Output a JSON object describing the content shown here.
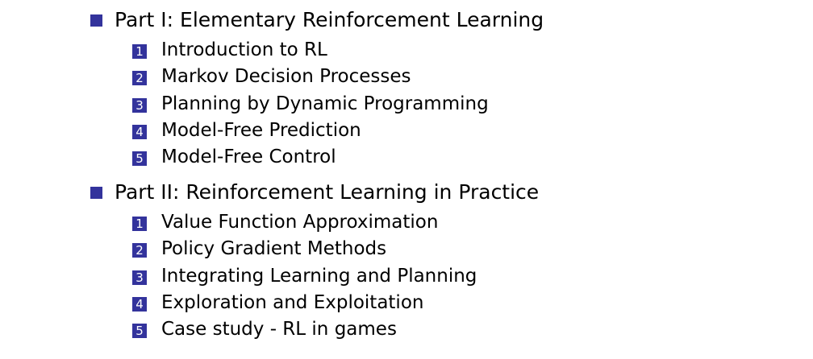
{
  "colors": {
    "accent": "#33339c",
    "background": "#ffffff",
    "text": "#000000"
  },
  "parts": [
    {
      "title": "Part I: Elementary Reinforcement Learning",
      "items": [
        {
          "num": "1",
          "label": "Introduction to RL"
        },
        {
          "num": "2",
          "label": "Markov Decision Processes"
        },
        {
          "num": "3",
          "label": "Planning by Dynamic Programming"
        },
        {
          "num": "4",
          "label": "Model-Free Prediction"
        },
        {
          "num": "5",
          "label": "Model-Free Control"
        }
      ]
    },
    {
      "title": "Part II: Reinforcement Learning in Practice",
      "items": [
        {
          "num": "1",
          "label": "Value Function Approximation"
        },
        {
          "num": "2",
          "label": "Policy Gradient Methods"
        },
        {
          "num": "3",
          "label": "Integrating Learning and Planning"
        },
        {
          "num": "4",
          "label": "Exploration and Exploitation"
        },
        {
          "num": "5",
          "label": "Case study - RL in games"
        }
      ]
    }
  ]
}
